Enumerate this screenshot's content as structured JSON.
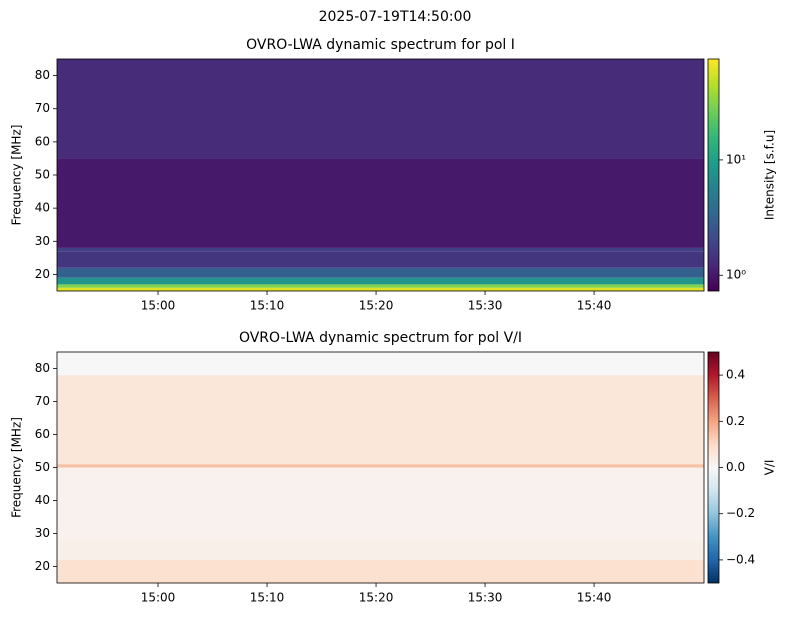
{
  "suptitle": "2025-07-19T14:50:00",
  "chart_data": [
    {
      "type": "heatmap",
      "title": "OVRO-LWA dynamic spectrum for pol I",
      "y_label": "Frequency [MHz]",
      "xlim": [
        "14:50:44",
        "15:50:05"
      ],
      "xticks": [
        "15:00",
        "15:10",
        "15:20",
        "15:30",
        "15:40"
      ],
      "ylim": [
        15,
        85
      ],
      "yticks": [
        20,
        30,
        40,
        50,
        60,
        70,
        80
      ],
      "freq_edges": [
        15,
        16,
        17,
        19,
        22,
        27,
        28,
        55,
        85
      ],
      "values": [
        60,
        30,
        8,
        3,
        1.5,
        1.8,
        1.0,
        1.3
      ],
      "colorbar_label": "Intensity [s.f.u]",
      "color_scale": "log",
      "zlim": [
        0.73,
        75
      ],
      "zticks": [
        {
          "value": 1,
          "label": "10⁰"
        },
        {
          "value": 10,
          "label": "10¹"
        }
      ],
      "colormap": [
        "#440154",
        "#482878",
        "#3e4989",
        "#31688e",
        "#26828e",
        "#1f9e89",
        "#35b779",
        "#6ece58",
        "#b5de2b",
        "#fde725"
      ]
    },
    {
      "type": "heatmap",
      "title": "OVRO-LWA dynamic spectrum for pol V/I",
      "y_label": "Frequency [MHz]",
      "xlim": [
        "14:50:44",
        "15:50:05"
      ],
      "xticks": [
        "15:00",
        "15:10",
        "15:20",
        "15:30",
        "15:40"
      ],
      "ylim": [
        15,
        85
      ],
      "yticks": [
        20,
        30,
        40,
        50,
        60,
        70,
        80
      ],
      "freq_edges": [
        15,
        22,
        28,
        50,
        51,
        78,
        85
      ],
      "values": [
        0.08,
        0.03,
        0.02,
        0.15,
        0.06,
        0.0
      ],
      "colorbar_label": "V/I",
      "color_scale": "linear",
      "zlim": [
        -0.5,
        0.5
      ],
      "zticks": [
        {
          "value": 0.4,
          "label": "0.4"
        },
        {
          "value": 0.2,
          "label": "0.2"
        },
        {
          "value": 0,
          "label": "0.0"
        },
        {
          "value": -0.2,
          "label": "−0.2"
        },
        {
          "value": -0.4,
          "label": "−0.4"
        }
      ],
      "colormap": [
        "#053061",
        "#2166ac",
        "#4393c3",
        "#92c5de",
        "#d1e5f0",
        "#f7f7f7",
        "#fddbc7",
        "#f4a582",
        "#d6604d",
        "#b2182b",
        "#67001f"
      ]
    }
  ]
}
